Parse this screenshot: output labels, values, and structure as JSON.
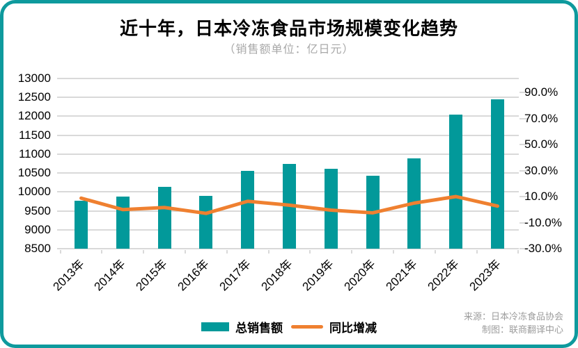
{
  "header": {
    "title": "近十年，日本冷冻食品市场规模变化趋势",
    "subtitle": "（销售额单位：亿日元）"
  },
  "colors": {
    "frame_border": "#0e9a9d",
    "bar": "#02999a",
    "line": "#ef8030",
    "grid": "#d9d9d9",
    "subtitle_text": "#a8a8a8",
    "footer_text": "#9c9c9c"
  },
  "chart_data": {
    "type": "combo",
    "categories": [
      "2013年",
      "2014年",
      "2015年",
      "2016年",
      "2017年",
      "2018年",
      "2019年",
      "2020年",
      "2021年",
      "2022年",
      "2023年"
    ],
    "series": [
      {
        "name": "总销售额",
        "type": "bar",
        "axis": "left",
        "unit": "亿日元",
        "color": "#02999a",
        "values": [
          9760,
          9870,
          10140,
          9890,
          10560,
          10740,
          10610,
          10420,
          10890,
          12040,
          12450
        ]
      },
      {
        "name": "同比增减",
        "type": "line",
        "axis": "right",
        "unit": "%",
        "color": "#ef8030",
        "values": [
          8.8,
          0.0,
          1.6,
          -2.9,
          6.4,
          3.4,
          -0.4,
          -2.5,
          5.0,
          10.0,
          2.7
        ]
      }
    ],
    "left_axis": {
      "min": 8500,
      "max": 13000,
      "step": 500,
      "ticks": [
        13000,
        12500,
        12000,
        11500,
        11000,
        10500,
        10000,
        9500,
        9000,
        8500
      ]
    },
    "right_axis": {
      "min": -30,
      "max": 90,
      "step": 20,
      "tick_values": [
        90,
        70,
        50,
        30,
        10,
        -10,
        -30
      ],
      "tick_labels": [
        "90.0%",
        "70.0%",
        "50.0%",
        "30.0%",
        "10.0%",
        "-10.0%",
        "-30.0%"
      ]
    },
    "grid": true,
    "legend_position": "bottom"
  },
  "footer": {
    "source": "来源：日本冷冻食品协会",
    "credit": "制图：联商翻译中心"
  }
}
